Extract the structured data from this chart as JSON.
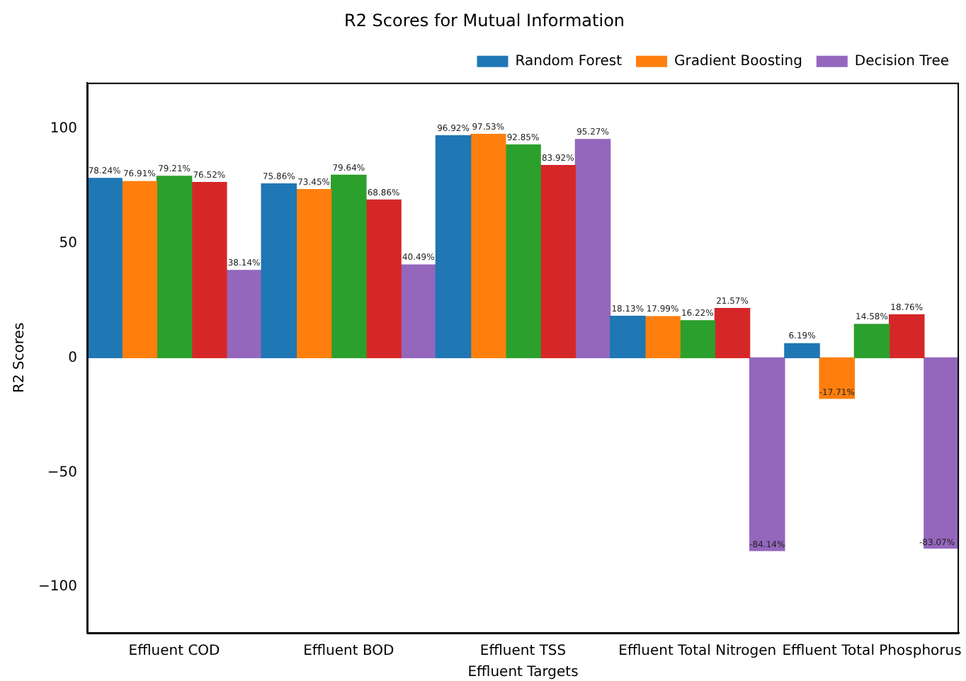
{
  "chart_data": {
    "type": "bar",
    "title": "R2 Scores for Mutual Information",
    "xlabel": "Effluent Targets",
    "ylabel": "R2 Scores",
    "categories": [
      "Effluent COD",
      "Effluent BOD",
      "Effluent TSS",
      "Effluent Total Nitrogen",
      "Effluent Total Phosphorus"
    ],
    "series": [
      {
        "name": "Random Forest",
        "color": "#1f77b4",
        "values": [
          78.24,
          75.86,
          96.92,
          18.13,
          6.19
        ],
        "value_labels": [
          "78.24%",
          "75.86%",
          "96.92%",
          "18.13%",
          "6.19%"
        ]
      },
      {
        "name": "Gradient Boosting",
        "color": "#ff7f0e",
        "values": [
          76.91,
          73.45,
          97.53,
          17.99,
          -17.71
        ],
        "value_labels": [
          "76.91%",
          "73.45%",
          "97.53%",
          "17.99%",
          "-17.71%"
        ]
      },
      {
        "color": "#2ca02c",
        "values": [
          79.21,
          79.64,
          92.85,
          16.22,
          14.58
        ],
        "value_labels": [
          "79.21%",
          "79.64%",
          "92.85%",
          "16.22%",
          "14.58%"
        ]
      },
      {
        "color": "#d62728",
        "values": [
          76.52,
          68.86,
          83.92,
          21.57,
          18.76
        ],
        "value_labels": [
          "76.52%",
          "68.86%",
          "83.92%",
          "21.57%",
          "18.76%"
        ]
      },
      {
        "name": "Decision Tree",
        "color": "#9467bd",
        "values": [
          38.14,
          40.49,
          95.27,
          -84.14,
          -83.07
        ],
        "value_labels": [
          "38.14%",
          "40.49%",
          "95.27%",
          "-84.14%",
          "-83.07%"
        ]
      }
    ],
    "ylim": [
      -120,
      120
    ],
    "yticks": [
      -100,
      -50,
      0,
      50,
      100
    ],
    "grid": false,
    "legend": "top right"
  }
}
